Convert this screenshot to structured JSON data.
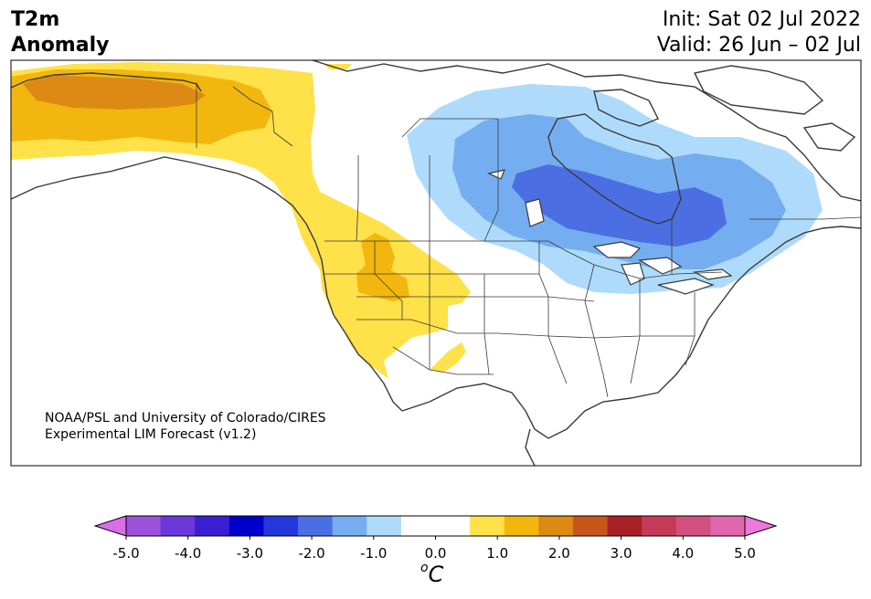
{
  "title": {
    "line1": "T2m",
    "line2": "Anomaly"
  },
  "dates": {
    "init": "Init: Sat 02 Jul 2022",
    "valid": "Valid: 26 Jun – 02 Jul"
  },
  "credit": {
    "line1": "NOAA/PSL and University of Colorado/CIRES",
    "line2": "Experimental LIM Forecast (v1.2)"
  },
  "colorbar": {
    "tick_labels": [
      "-5.0",
      "-4.0",
      "-3.0",
      "-2.0",
      "-1.0",
      "0.0",
      "1.0",
      "2.0",
      "3.0",
      "4.0",
      "5.0"
    ],
    "unit_sup": "o",
    "unit": "C",
    "colors": [
      "#d86fe8",
      "#9c52dc",
      "#6a37d8",
      "#3a1fd0",
      "#0000cd",
      "#2437d9",
      "#4b6fe2",
      "#75aef0",
      "#aedbfb",
      "#ffffff",
      "#ffffff",
      "#ffe14a",
      "#f2b70e",
      "#dd8a15",
      "#c8561a",
      "#a82025",
      "#c63a58",
      "#d15080",
      "#e066ad",
      "#ee78db"
    ]
  },
  "colors": {
    "ocean": "#ffffff",
    "land": "#ffffff",
    "coast": "#3a3a3a",
    "warm1": "#ffe14a",
    "warm2": "#f2b70e",
    "warm3": "#dd8a15",
    "cool1": "#aedbfb",
    "cool2": "#75aef0",
    "cool3": "#4b6fe2"
  }
}
